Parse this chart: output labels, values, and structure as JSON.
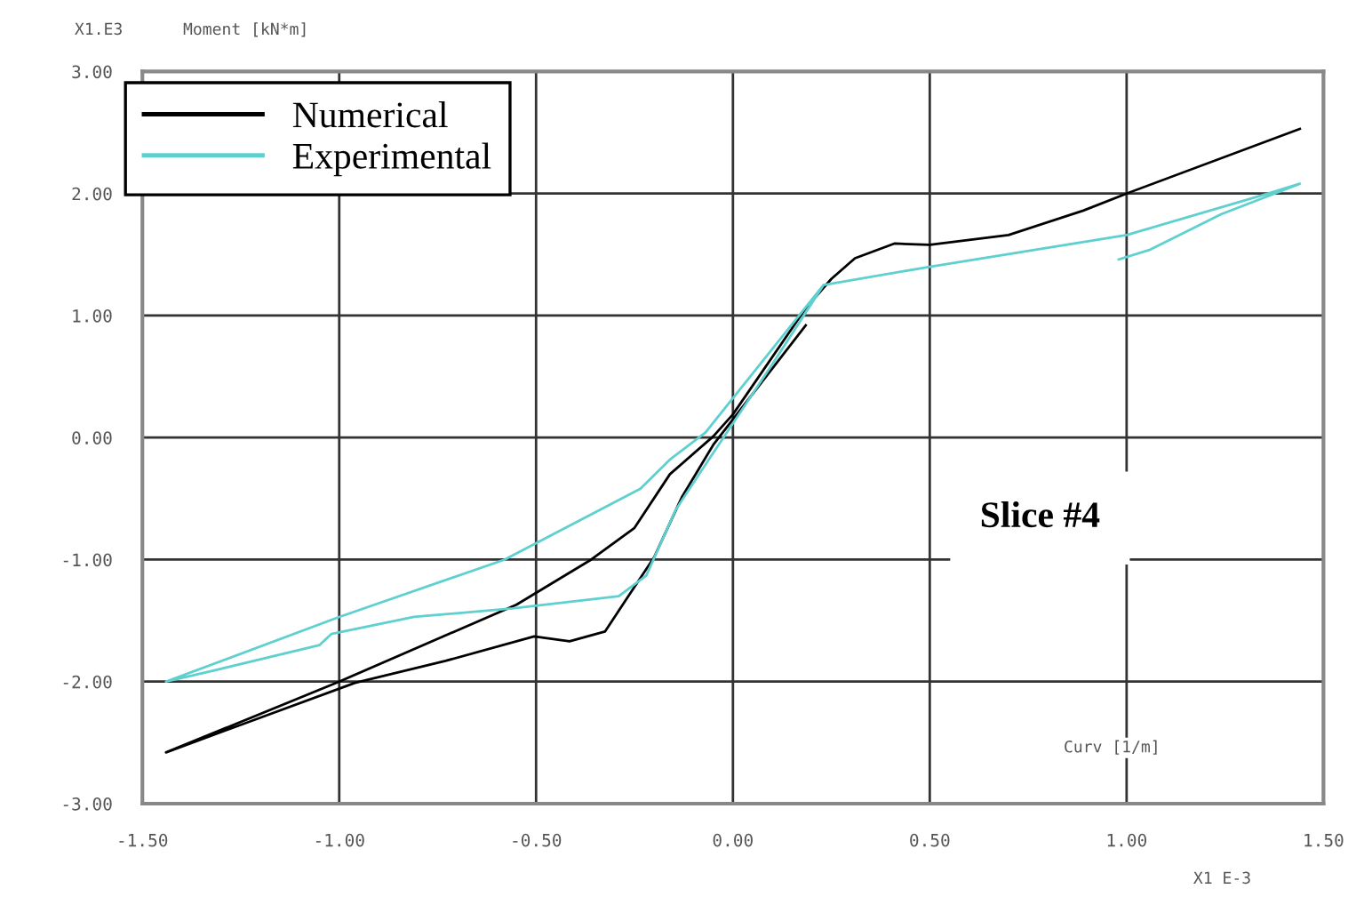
{
  "chart_data": {
    "type": "line",
    "xlabel": "Curv [1/m]",
    "ylabel": "Moment [kN*m]",
    "annotations": [
      "X1.E3",
      "X1 E-3",
      "Slice #4"
    ],
    "xlim": [
      -1.5,
      1.5
    ],
    "ylim": [
      -3,
      3
    ],
    "xticks": [
      {
        "value": -1.5,
        "label": "-1.50"
      },
      {
        "value": -1.0,
        "label": "-1.00"
      },
      {
        "value": -0.5,
        "label": "-0.50"
      },
      {
        "value": 0,
        "label": "0.00"
      },
      {
        "value": 0.5,
        "label": "0.50"
      },
      {
        "value": 1.0,
        "label": "1.00"
      },
      {
        "value": 1.5,
        "label": "1.50"
      }
    ],
    "yticks": [
      {
        "value": -3,
        "label": "-3.00"
      },
      {
        "value": -2,
        "label": "-2.00"
      },
      {
        "value": -1,
        "label": "-1.00"
      },
      {
        "value": 0,
        "label": "0.00"
      },
      {
        "value": 1,
        "label": "1.00"
      },
      {
        "value": 2,
        "label": "2.00"
      },
      {
        "value": 3,
        "label": "3.00"
      }
    ],
    "grid": true,
    "legend": "top left",
    "marker": "none",
    "line_style": "solid",
    "series": [
      {
        "name": "Numerical",
        "color": "#000000",
        "x": [
          0.185,
          -0.05,
          -0.13,
          -0.2,
          -0.28,
          -0.325,
          -0.415,
          -0.505,
          -0.73,
          -0.96,
          -1.44,
          -1.0,
          -0.55,
          -0.36,
          -0.25,
          -0.16,
          -0.05,
          0.0,
          0.185,
          0.25,
          0.31,
          0.41,
          0.5,
          0.7,
          0.89,
          1.0,
          1.44
        ],
        "values": [
          0.92,
          -0.06,
          -0.49,
          -0.98,
          -1.37,
          -1.59,
          -1.67,
          -1.63,
          -1.83,
          -2.01,
          -2.58,
          -2.0,
          -1.37,
          -1.0,
          -0.74,
          -0.3,
          0.01,
          0.19,
          1.06,
          1.3,
          1.47,
          1.59,
          1.58,
          1.66,
          1.86,
          2.0,
          2.53
        ]
      },
      {
        "name": "Experimental",
        "color": "#5fd0d0",
        "x": [
          0.23,
          0.1,
          -0.055,
          -0.145,
          -0.22,
          -0.29,
          -0.56,
          -0.81,
          -1.02,
          -1.05,
          -1.32,
          -1.44,
          -1.0,
          -0.58,
          -0.235,
          -0.16,
          -0.07,
          0.23,
          0.5,
          1.0,
          1.36,
          1.44,
          1.24,
          1.06,
          0.98
        ],
        "values": [
          1.25,
          0.6,
          -0.15,
          -0.59,
          -1.13,
          -1.3,
          -1.4,
          -1.47,
          -1.61,
          -1.7,
          -1.91,
          -2.0,
          -1.47,
          -1.0,
          -0.42,
          -0.18,
          0.04,
          1.25,
          1.4,
          1.66,
          2.0,
          2.08,
          1.83,
          1.54,
          1.46
        ]
      }
    ]
  }
}
